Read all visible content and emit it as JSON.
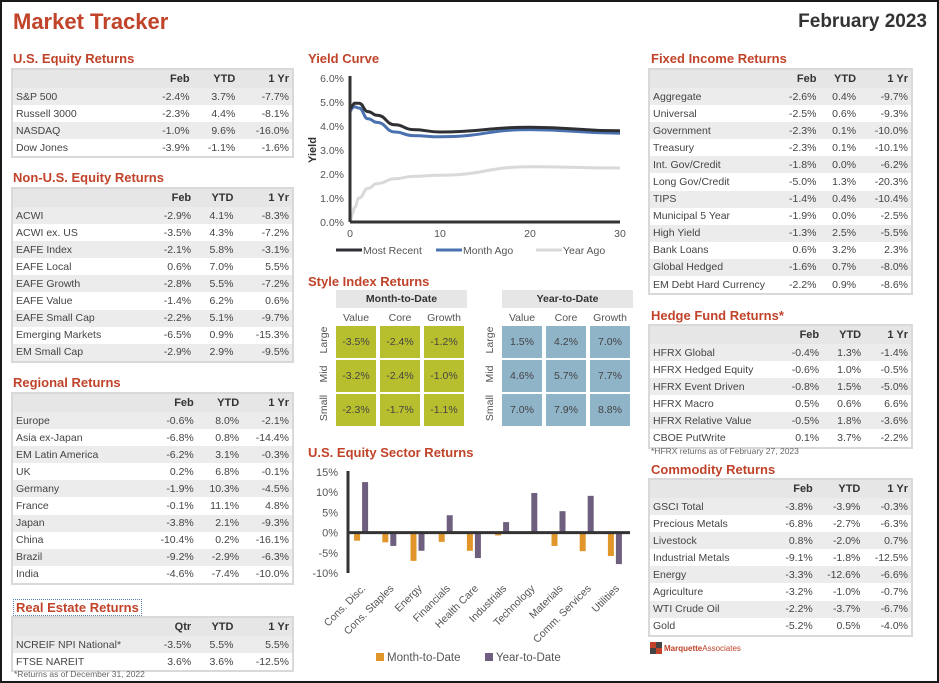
{
  "header": {
    "title": "Market Tracker",
    "date": "February 2023"
  },
  "us_equity": {
    "title": "U.S. Equity Returns",
    "columns": [
      "",
      "Feb",
      "YTD",
      "1 Yr"
    ],
    "rows": [
      [
        "S&P 500",
        "-2.4%",
        "3.7%",
        "-7.7%"
      ],
      [
        "Russell 3000",
        "-2.3%",
        "4.4%",
        "-8.1%"
      ],
      [
        "NASDAQ",
        "-1.0%",
        "9.6%",
        "-16.0%"
      ],
      [
        "Dow Jones",
        "-3.9%",
        "-1.1%",
        "-1.6%"
      ]
    ]
  },
  "non_us_equity": {
    "title": "Non-U.S. Equity Returns",
    "columns": [
      "",
      "Feb",
      "YTD",
      "1 Yr"
    ],
    "rows": [
      [
        "ACWI",
        "-2.9%",
        "4.1%",
        "-8.3%"
      ],
      [
        "ACWI ex. US",
        "-3.5%",
        "4.3%",
        "-7.2%"
      ],
      [
        "EAFE Index",
        "-2.1%",
        "5.8%",
        "-3.1%"
      ],
      [
        "EAFE Local",
        "0.6%",
        "7.0%",
        "5.5%"
      ],
      [
        "EAFE Growth",
        "-2.8%",
        "5.5%",
        "-7.2%"
      ],
      [
        "EAFE Value",
        "-1.4%",
        "6.2%",
        "0.6%"
      ],
      [
        "EAFE Small Cap",
        "-2.2%",
        "5.1%",
        "-9.7%"
      ],
      [
        "Emerging Markets",
        "-6.5%",
        "0.9%",
        "-15.3%"
      ],
      [
        "EM Small Cap",
        "-2.9%",
        "2.9%",
        "-9.5%"
      ]
    ]
  },
  "regional": {
    "title": "Regional Returns",
    "columns": [
      "",
      "Feb",
      "YTD",
      "1 Yr"
    ],
    "rows": [
      [
        "Europe",
        "-0.6%",
        "8.0%",
        "-2.1%"
      ],
      [
        "Asia ex-Japan",
        "-6.8%",
        "0.8%",
        "-14.4%"
      ],
      [
        "EM Latin America",
        "-6.2%",
        "3.1%",
        "-0.3%"
      ],
      [
        "UK",
        "0.2%",
        "6.8%",
        "-0.1%"
      ],
      [
        "Germany",
        "-1.9%",
        "10.3%",
        "-4.5%"
      ],
      [
        "France",
        "-0.1%",
        "11.1%",
        "4.8%"
      ],
      [
        "Japan",
        "-3.8%",
        "2.1%",
        "-9.3%"
      ],
      [
        "China",
        "-10.4%",
        "0.2%",
        "-16.1%"
      ],
      [
        "Brazil",
        "-9.2%",
        "-2.9%",
        "-6.3%"
      ],
      [
        "India",
        "-4.6%",
        "-7.4%",
        "-10.0%"
      ]
    ]
  },
  "real_estate": {
    "title": "Real Estate Returns",
    "columns": [
      "",
      "Qtr",
      "YTD",
      "1 Yr"
    ],
    "rows": [
      [
        "NCREIF NPI National*",
        "-3.5%",
        "5.5%",
        "5.5%"
      ],
      [
        "FTSE NAREIT",
        "3.6%",
        "3.6%",
        "-12.5%"
      ]
    ],
    "footnote": "*Returns as of December 31, 2022"
  },
  "fixed_income": {
    "title": "Fixed Income Returns",
    "columns": [
      "",
      "Feb",
      "YTD",
      "1 Yr"
    ],
    "rows": [
      [
        "Aggregate",
        "-2.6%",
        "0.4%",
        "-9.7%"
      ],
      [
        "Universal",
        "-2.5%",
        "0.6%",
        "-9.3%"
      ],
      [
        "Government",
        "-2.3%",
        "0.1%",
        "-10.0%"
      ],
      [
        "Treasury",
        "-2.3%",
        "0.1%",
        "-10.1%"
      ],
      [
        "Int. Gov/Credit",
        "-1.8%",
        "0.0%",
        "-6.2%"
      ],
      [
        "Long Gov/Credit",
        "-5.0%",
        "1.3%",
        "-20.3%"
      ],
      [
        "TIPS",
        "-1.4%",
        "0.4%",
        "-10.4%"
      ],
      [
        "Municipal 5 Year",
        "-1.9%",
        "0.0%",
        "-2.5%"
      ],
      [
        "High Yield",
        "-1.3%",
        "2.5%",
        "-5.5%"
      ],
      [
        "Bank Loans",
        "0.6%",
        "3.2%",
        "2.3%"
      ],
      [
        "Global Hedged",
        "-1.6%",
        "0.7%",
        "-8.0%"
      ],
      [
        "EM Debt Hard Currency",
        "-2.2%",
        "0.9%",
        "-8.6%"
      ]
    ]
  },
  "hedge_fund": {
    "title": "Hedge Fund Returns*",
    "columns": [
      "",
      "Feb",
      "YTD",
      "1 Yr"
    ],
    "rows": [
      [
        "HFRX Global",
        "-0.4%",
        "1.3%",
        "-1.4%"
      ],
      [
        "HFRX Hedged Equity",
        "-0.6%",
        "1.0%",
        "-0.5%"
      ],
      [
        "HFRX Event Driven",
        "-0.8%",
        "1.5%",
        "-5.0%"
      ],
      [
        "HFRX Macro",
        "0.5%",
        "0.6%",
        "6.6%"
      ],
      [
        "HFRX Relative Value",
        "-0.5%",
        "1.8%",
        "-3.6%"
      ],
      [
        "CBOE PutWrite",
        "0.1%",
        "3.7%",
        "-2.2%"
      ]
    ],
    "footnote": "*HFRX returns as of February 27, 2023"
  },
  "commodity": {
    "title": "Commodity Returns",
    "columns": [
      "",
      "Feb",
      "YTD",
      "1 Yr"
    ],
    "rows": [
      [
        "GSCI Total",
        "-3.8%",
        "-3.9%",
        "-0.3%"
      ],
      [
        "Precious Metals",
        "-6.8%",
        "-2.7%",
        "-6.3%"
      ],
      [
        "Livestock",
        "0.8%",
        "-2.0%",
        "0.7%"
      ],
      [
        "Industrial Metals",
        "-9.1%",
        "-1.8%",
        "-12.5%"
      ],
      [
        "Energy",
        "-3.3%",
        "-12.6%",
        "-6.6%"
      ],
      [
        "Agriculture",
        "-3.2%",
        "-1.0%",
        "-0.7%"
      ],
      [
        "WTI Crude Oil",
        "-2.2%",
        "-3.7%",
        "-6.7%"
      ],
      [
        "Gold",
        "-5.2%",
        "0.5%",
        "-4.0%"
      ]
    ]
  },
  "style_index": {
    "title": "Style Index Returns",
    "mtd": {
      "label": "Month-to-Date",
      "columns": [
        "Value",
        "Core",
        "Growth"
      ],
      "rows": [
        "Large",
        "Mid",
        "Small"
      ],
      "values": [
        [
          "-3.5%",
          "-2.4%",
          "-1.2%"
        ],
        [
          "-3.2%",
          "-2.4%",
          "-1.0%"
        ],
        [
          "-2.3%",
          "-1.7%",
          "-1.1%"
        ]
      ]
    },
    "ytd": {
      "label": "Year-to-Date",
      "columns": [
        "Value",
        "Core",
        "Growth"
      ],
      "rows": [
        "Large",
        "Mid",
        "Small"
      ],
      "values": [
        [
          "1.5%",
          "4.2%",
          "7.0%"
        ],
        [
          "4.6%",
          "5.7%",
          "7.7%"
        ],
        [
          "7.0%",
          "7.9%",
          "8.8%"
        ]
      ]
    }
  },
  "logo": {
    "bold": "Marquette",
    "light": "Associates"
  },
  "chart_data": [
    {
      "type": "line",
      "title": "Yield Curve",
      "xlabel": "",
      "ylabel": "Yield",
      "xlim": [
        0,
        30
      ],
      "ylim": [
        0,
        6
      ],
      "x_ticks": [
        "0",
        "10",
        "20",
        "30"
      ],
      "y_ticks": [
        "0.0%",
        "1.0%",
        "2.0%",
        "3.0%",
        "4.0%",
        "5.0%",
        "6.0%"
      ],
      "legend": "bottom",
      "x": [
        0.08,
        0.25,
        0.5,
        1,
        2,
        3,
        5,
        7,
        10,
        20,
        30
      ],
      "series": [
        {
          "name": "Most Recent",
          "color": "#2f3033",
          "values": [
            4.75,
            4.85,
            4.95,
            4.95,
            4.6,
            4.45,
            4.05,
            3.85,
            3.75,
            3.95,
            3.8
          ]
        },
        {
          "name": "Month Ago",
          "color": "#4a72b0",
          "values": [
            4.65,
            4.75,
            4.8,
            4.75,
            4.3,
            4.15,
            3.75,
            3.6,
            3.55,
            3.85,
            3.7
          ]
        },
        {
          "name": "Year Ago",
          "color": "#d9d9d9",
          "values": [
            0.1,
            0.35,
            0.6,
            1.0,
            1.4,
            1.6,
            1.8,
            1.9,
            1.95,
            2.3,
            2.25
          ]
        }
      ]
    },
    {
      "type": "bar",
      "title": "U.S. Equity Sector Returns",
      "categories": [
        "Cons. Disc.",
        "Cons. Staples",
        "Energy",
        "Financials",
        "Health Care",
        "Industrials",
        "Technology",
        "Materials",
        "Comm. Services",
        "Utilities"
      ],
      "series": [
        {
          "name": "Month-to-Date",
          "color": "#e0962a",
          "values": [
            -2.0,
            -2.4,
            -7.0,
            -2.3,
            -4.5,
            -0.7,
            0.0,
            -3.3,
            -4.6,
            -5.8
          ]
        },
        {
          "name": "Year-to-Date",
          "color": "#6f5f7f",
          "values": [
            12.5,
            -3.3,
            -4.5,
            4.3,
            -6.3,
            2.6,
            9.8,
            5.3,
            9.1,
            -7.8
          ]
        }
      ],
      "ylim": [
        -10,
        15
      ],
      "y_ticks": [
        "-10%",
        "-5%",
        "0%",
        "5%",
        "10%",
        "15%"
      ],
      "legend": "bottom"
    }
  ]
}
